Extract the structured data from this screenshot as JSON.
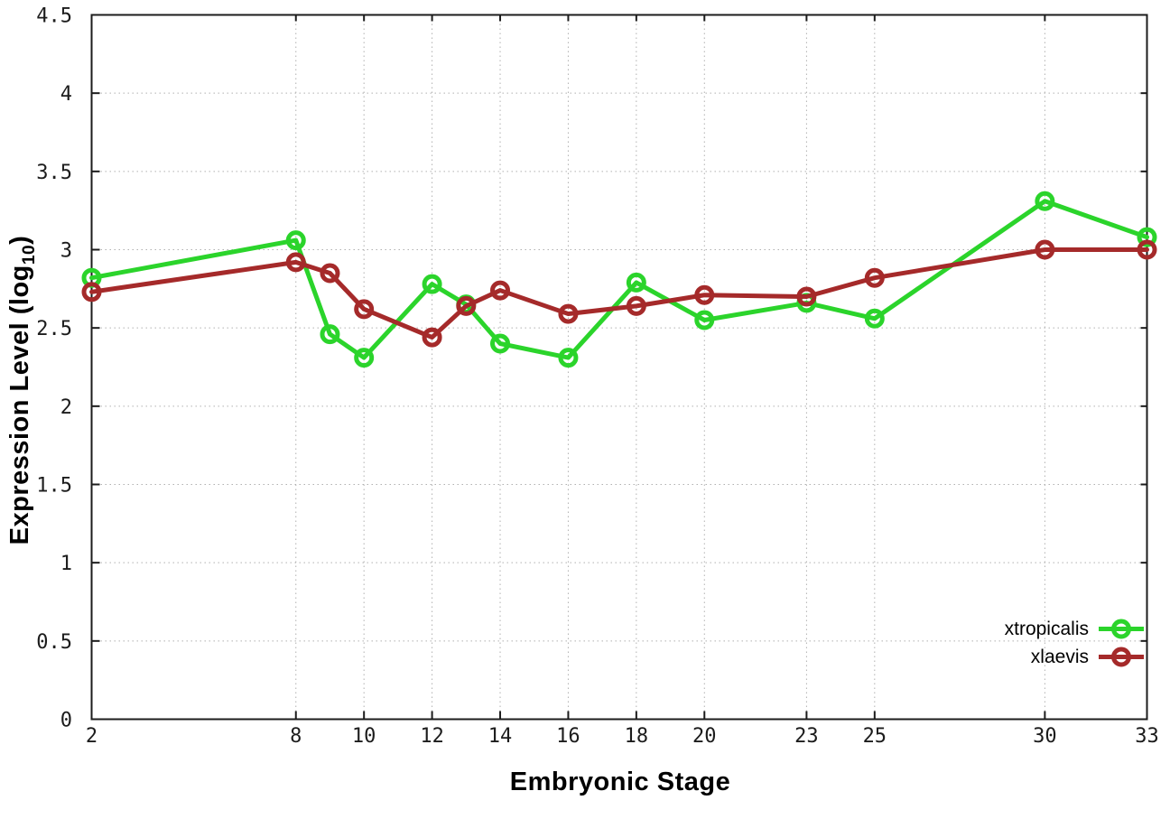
{
  "chart_data": {
    "type": "line",
    "title": "",
    "xlabel": "Embryonic Stage",
    "ylabel": "Expression Level (log10)",
    "ylabel_parts": {
      "prefix": "Expression Level (log",
      "sub": "10",
      "suffix": ")"
    },
    "x": [
      2,
      8,
      9,
      10,
      12,
      13,
      14,
      16,
      18,
      20,
      23,
      25,
      30,
      33
    ],
    "series": [
      {
        "name": "xtropicalis",
        "color": "#2bd42b",
        "values": [
          2.82,
          3.06,
          2.46,
          2.31,
          2.78,
          2.65,
          2.4,
          2.31,
          2.79,
          2.55,
          2.66,
          2.56,
          3.31,
          3.08
        ]
      },
      {
        "name": "xlaevis",
        "color": "#a52a2a",
        "values": [
          2.73,
          2.92,
          2.85,
          2.62,
          2.44,
          2.64,
          2.74,
          2.59,
          2.64,
          2.71,
          2.7,
          2.82,
          3.0,
          3.0
        ]
      }
    ],
    "xlim": [
      2,
      33
    ],
    "ylim": [
      0,
      4.5
    ],
    "x_ticks": [
      2,
      8,
      10,
      12,
      14,
      16,
      18,
      20,
      23,
      25,
      30,
      33
    ],
    "x_tick_labels": [
      "2",
      "8",
      "10",
      "12",
      "14",
      "16",
      "18",
      "20",
      "23",
      "25",
      "30",
      "33"
    ],
    "y_ticks": [
      0,
      0.5,
      1,
      1.5,
      2,
      2.5,
      3,
      3.5,
      4,
      4.5
    ],
    "y_tick_labels": [
      "0",
      "0.5",
      "1",
      "1.5",
      "2",
      "2.5",
      "3",
      "3.5",
      "4",
      "4.5"
    ],
    "grid": true,
    "grid_style": "dotted",
    "legend_position": "bottom-right",
    "marker": "open-circle",
    "colors": {
      "grid": "#b0b0b0",
      "frame": "#1c1c1c",
      "tick_text": "#1c1c1c",
      "background": "#ffffff"
    }
  }
}
